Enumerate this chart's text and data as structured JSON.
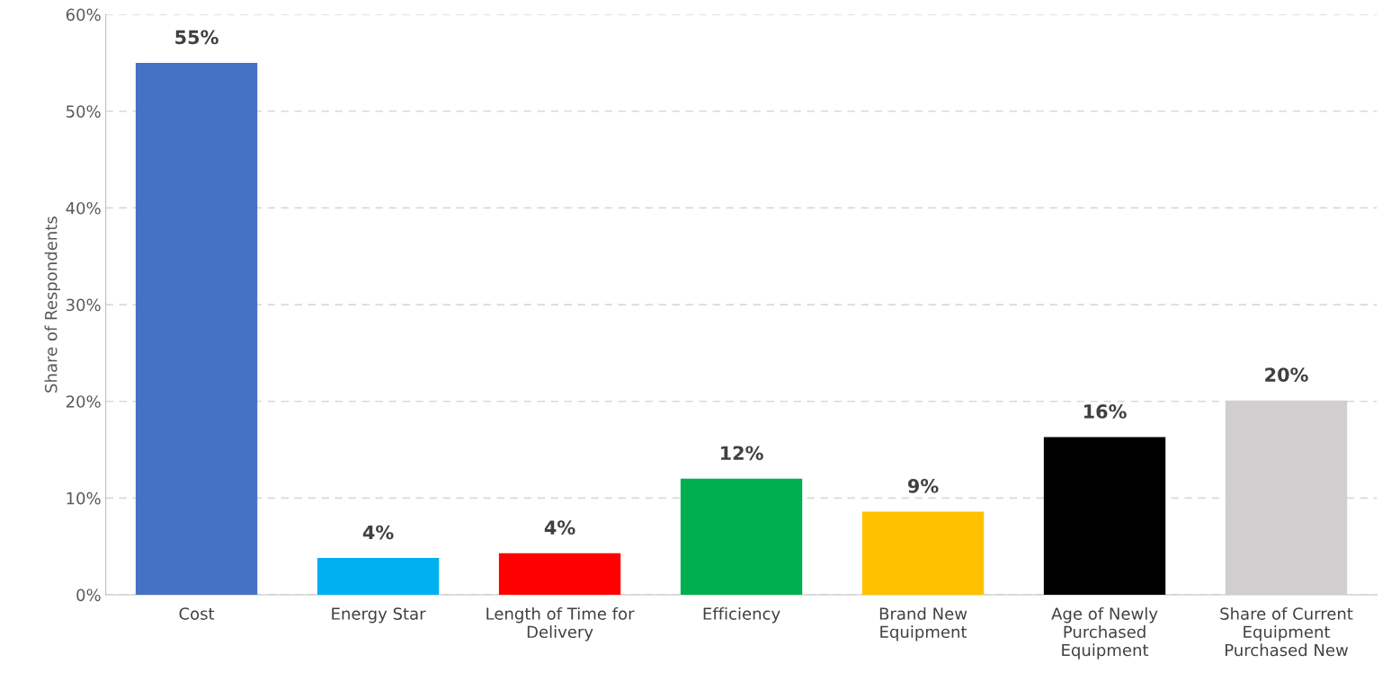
{
  "chart_data": {
    "type": "bar",
    "ylabel": "Share of Respondents",
    "categories": [
      "Cost",
      "Energy Star",
      "Length of Time for\nDelivery",
      "Efficiency",
      "Brand New\nEquipment",
      "Age of Newly\nPurchased\nEquipment",
      "Share of Current\nEquipment\nPurchased New"
    ],
    "values": [
      55,
      3.8,
      4.3,
      12.0,
      8.6,
      16.3,
      20.1
    ],
    "value_labels": [
      "55%",
      "4%",
      "4%",
      "12%",
      "9%",
      "16%",
      "20%"
    ],
    "colors": [
      "#4472c4",
      "#00b0f0",
      "#ff0000",
      "#00b050",
      "#ffc000",
      "#000000",
      "#d0cece"
    ],
    "ylim": [
      0,
      60
    ],
    "yticks": [
      {
        "value": 0,
        "label": "0%"
      },
      {
        "value": 10,
        "label": "10%"
      },
      {
        "value": 20,
        "label": "20%"
      },
      {
        "value": 30,
        "label": "30%"
      },
      {
        "value": 40,
        "label": "40%"
      },
      {
        "value": 50,
        "label": "50%"
      },
      {
        "value": 60,
        "label": "60%"
      }
    ],
    "grid": "y",
    "legend": false
  }
}
